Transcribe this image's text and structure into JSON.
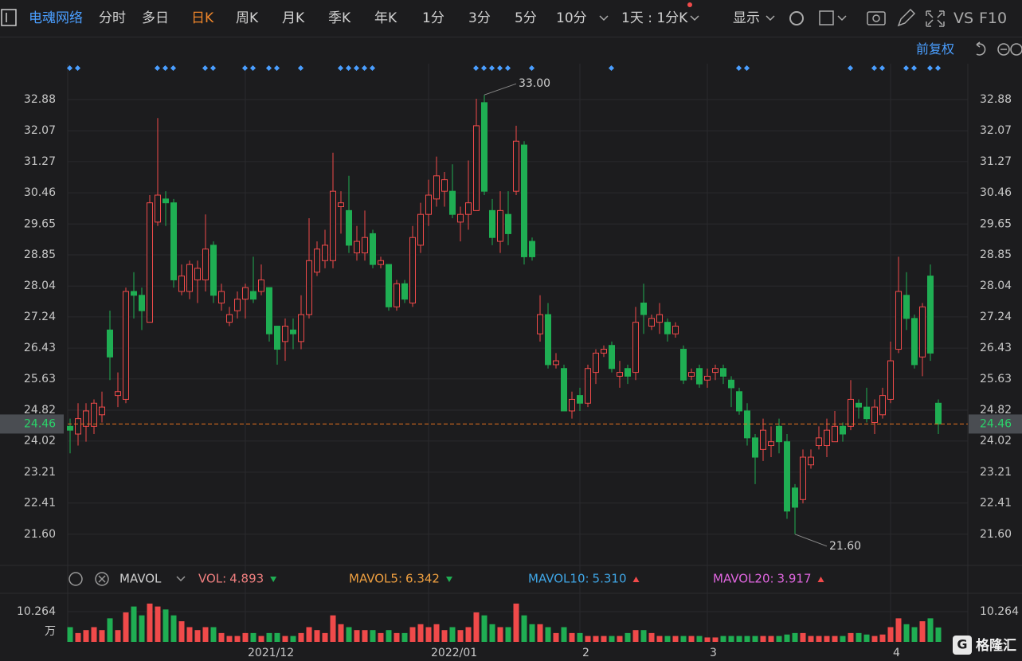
{
  "toolbar": {
    "stock": "电魂网络",
    "periods": [
      "分时",
      "多日",
      "日K",
      "周K",
      "月K",
      "季K",
      "年K",
      "1分",
      "3分",
      "5分",
      "10分"
    ],
    "active": 2,
    "interval": "1天 : 1分K",
    "display": "显示",
    "vs": "VS",
    "f10": "F10",
    "adjust": "前复权"
  },
  "watermark": "格隆汇",
  "chart_data": [
    {
      "type": "candlestick",
      "categories": [
        null,
        null,
        null,
        null,
        null,
        null,
        null,
        null,
        null,
        null,
        null,
        null,
        null,
        null,
        null,
        null,
        null,
        null,
        null,
        null,
        null,
        null,
        "2021/12",
        null,
        null,
        null,
        null,
        null,
        null,
        null,
        null,
        null,
        null,
        null,
        null,
        null,
        null,
        null,
        null,
        null,
        null,
        null,
        null,
        null,
        null,
        "2022/01",
        null,
        null,
        null,
        null,
        null,
        null,
        null,
        null,
        null,
        null,
        null,
        null,
        null,
        null,
        null,
        null,
        null,
        null,
        "2",
        null,
        null,
        null,
        null,
        null,
        null,
        null,
        null,
        null,
        null,
        null,
        null,
        null,
        null,
        null,
        "3",
        null,
        null,
        null,
        null,
        null,
        null,
        null,
        null,
        null,
        null,
        null,
        null,
        null,
        null,
        null,
        null,
        null,
        null,
        null,
        null,
        null,
        null,
        "4",
        null,
        null,
        null,
        null,
        null,
        null
      ],
      "open": [
        24.4,
        24.2,
        24.4,
        24.4,
        24.7,
        26.9,
        25.2,
        25.1,
        27.9,
        27.8,
        27.1,
        29.7,
        30.3,
        30.2,
        27.9,
        27.9,
        28.2,
        28.2,
        29.1,
        27.6,
        27.1,
        27.4,
        27.7,
        27.9,
        27.9,
        28.0,
        27.0,
        26.6,
        26.9,
        26.6,
        27.3,
        28.4,
        28.7,
        28.7,
        30.1,
        30.0,
        28.9,
        28.9,
        29.4,
        28.6,
        28.6,
        27.5,
        28.1,
        27.6,
        29.1,
        29.9,
        30.3,
        30.5,
        30.5,
        29.7,
        29.9,
        30.0,
        32.8,
        30.0,
        29.2,
        29.9,
        30.5,
        31.7,
        29.2,
        26.8,
        27.3,
        26.0,
        25.9,
        24.8,
        25.2,
        25.0,
        25.8,
        26.3,
        26.5,
        25.7,
        25.9,
        25.8,
        27.6,
        27.0,
        27.1,
        27.1,
        26.8,
        26.4,
        25.7,
        25.9,
        25.6,
        25.8,
        25.9,
        25.6,
        25.3,
        24.8,
        24.1,
        23.8,
        23.9,
        24.4,
        24.0,
        22.8,
        22.5,
        23.4,
        23.9,
        23.9,
        24.0,
        24.4,
        24.4,
        25.0,
        24.9,
        24.5,
        24.7,
        25.1,
        26.4,
        27.8,
        27.2,
        26.2,
        28.3,
        25.0
      ],
      "high": [
        24.6,
        25.0,
        25.0,
        25.1,
        25.3,
        27.4,
        25.8,
        28.0,
        28.4,
        28.0,
        30.4,
        32.4,
        30.5,
        30.3,
        28.6,
        28.7,
        28.7,
        29.9,
        29.2,
        28.1,
        27.5,
        27.9,
        28.1,
        28.8,
        28.6,
        28.0,
        27.0,
        27.2,
        27.2,
        27.8,
        29.8,
        29.2,
        29.5,
        31.5,
        30.5,
        30.9,
        29.6,
        30.0,
        29.5,
        28.8,
        28.6,
        28.2,
        28.2,
        29.6,
        30.2,
        30.8,
        31.4,
        31.0,
        31.2,
        30.1,
        31.3,
        32.9,
        33.0,
        30.3,
        30.5,
        30.5,
        32.2,
        31.8,
        29.3,
        27.8,
        27.6,
        26.3,
        26.0,
        25.3,
        25.4,
        26.0,
        26.4,
        26.5,
        26.6,
        26.1,
        26.0,
        27.5,
        28.1,
        27.3,
        27.6,
        27.2,
        27.1,
        26.5,
        25.9,
        26.0,
        25.9,
        26.0,
        26.0,
        25.7,
        25.4,
        25.0,
        24.2,
        24.6,
        24.4,
        24.6,
        24.2,
        22.9,
        23.8,
        23.8,
        24.4,
        24.6,
        24.8,
        24.5,
        25.6,
        25.1,
        25.4,
        25.1,
        25.4,
        26.6,
        28.8,
        28.4,
        27.3,
        27.6,
        28.6,
        25.1
      ],
      "low": [
        23.7,
        23.9,
        24.0,
        24.2,
        24.5,
        25.6,
        24.9,
        25.0,
        27.2,
        26.9,
        27.1,
        29.6,
        29.6,
        28.0,
        27.8,
        27.7,
        27.6,
        27.9,
        27.6,
        27.4,
        27.0,
        27.2,
        27.2,
        27.6,
        27.8,
        26.6,
        26.0,
        26.1,
        26.4,
        26.4,
        27.2,
        28.3,
        28.5,
        28.5,
        29.4,
        28.9,
        28.7,
        28.7,
        28.5,
        28.5,
        27.4,
        27.4,
        27.6,
        27.5,
        28.9,
        29.6,
        30.1,
        30.1,
        29.8,
        29.2,
        29.5,
        30.0,
        30.4,
        29.1,
        28.9,
        29.1,
        30.4,
        28.6,
        28.7,
        26.6,
        25.9,
        25.9,
        24.8,
        24.6,
        24.8,
        24.9,
        25.5,
        26.2,
        25.8,
        25.4,
        25.5,
        25.6,
        26.8,
        26.9,
        26.8,
        26.6,
        26.7,
        25.5,
        25.6,
        25.4,
        25.4,
        25.6,
        25.5,
        24.9,
        24.7,
        23.9,
        22.9,
        23.5,
        23.6,
        23.7,
        22.0,
        21.6,
        22.4,
        23.3,
        23.8,
        23.6,
        24.0,
        24.0,
        24.3,
        24.6,
        24.5,
        24.2,
        24.6,
        25.0,
        26.3,
        26.9,
        25.9,
        25.7,
        26.1,
        24.2
      ],
      "close": [
        24.3,
        24.6,
        24.8,
        25.0,
        24.9,
        26.2,
        25.3,
        27.9,
        27.8,
        27.4,
        30.2,
        30.4,
        30.2,
        28.2,
        28.3,
        28.6,
        28.5,
        29.0,
        27.8,
        27.9,
        27.3,
        27.7,
        28.0,
        27.7,
        28.2,
        26.8,
        26.4,
        27.0,
        26.8,
        27.3,
        28.7,
        29.0,
        29.1,
        30.5,
        30.2,
        29.1,
        29.2,
        29.3,
        28.6,
        28.7,
        27.5,
        28.1,
        27.7,
        29.3,
        29.9,
        30.4,
        30.9,
        30.8,
        29.9,
        29.9,
        30.2,
        32.2,
        30.5,
        29.3,
        30.0,
        29.4,
        31.8,
        28.8,
        28.8,
        27.3,
        26.0,
        26.1,
        24.8,
        25.1,
        25.0,
        25.9,
        26.3,
        26.4,
        25.9,
        25.8,
        25.7,
        27.1,
        27.3,
        27.2,
        27.3,
        26.8,
        27.0,
        25.6,
        25.8,
        25.5,
        25.7,
        25.9,
        25.7,
        25.4,
        24.8,
        24.1,
        23.6,
        24.3,
        24.0,
        24.0,
        22.2,
        22.3,
        23.6,
        23.6,
        24.1,
        24.3,
        24.4,
        24.2,
        25.1,
        24.9,
        24.6,
        24.9,
        25.2,
        26.1,
        27.9,
        27.2,
        26.0,
        27.5,
        26.3,
        24.46
      ],
      "up_color": "#f04a4a",
      "down_color": "#1fae53",
      "ylim": [
        20.79,
        33.81
      ],
      "yticks": [
        {
          "value": 21.6,
          "label": "21.60"
        },
        22.41,
        23.21,
        24.02,
        24.82,
        25.63,
        26.43,
        27.24,
        28.04,
        28.85,
        29.65,
        30.46,
        31.27,
        32.07,
        32.88
      ],
      "grid": true,
      "last_price": 24.46,
      "last_price_color": "#e8731f",
      "annotations": [
        {
          "value": 33.0,
          "label": "33.00",
          "at": "high"
        },
        {
          "value": 21.6,
          "label": "21.60",
          "at": "low"
        }
      ]
    },
    {
      "type": "bar",
      "indicator": "MAVOL",
      "values": [
        5,
        3,
        4,
        5,
        4,
        8,
        4,
        10,
        12,
        9,
        13,
        12,
        11,
        9,
        7,
        5,
        4,
        5,
        5,
        3,
        2,
        2,
        3,
        3,
        2,
        3,
        3,
        2,
        2,
        3,
        5,
        4,
        3,
        9,
        6,
        5,
        4,
        4,
        4,
        3,
        4,
        3,
        3,
        5,
        6,
        5,
        6,
        4,
        5,
        4,
        5,
        10,
        9,
        6,
        5,
        5,
        13,
        9,
        6,
        6,
        5,
        3,
        5,
        3,
        3,
        2,
        2,
        2,
        2,
        2,
        3,
        4,
        4,
        3,
        2,
        2,
        2,
        2,
        2,
        2,
        1.5,
        1.5,
        2,
        2,
        2,
        2,
        2,
        2,
        2,
        2,
        2.5,
        3,
        3,
        2,
        2,
        2,
        2,
        2,
        3,
        3,
        2.5,
        2,
        2.5,
        5,
        8,
        6,
        5,
        7,
        8,
        4.893
      ],
      "ylim": [
        0,
        15.67
      ],
      "yticks": [
        10.264
      ],
      "unit": "万",
      "legend": [
        {
          "name": "VOL:",
          "value": 4.893,
          "color": "#f07f7f",
          "trend": "down"
        },
        {
          "name": "MAVOL5:",
          "value": 6.342,
          "color": "#f0a040",
          "trend": "down"
        },
        {
          "name": "MAVOL10:",
          "value": 5.31,
          "value_label": "5.310",
          "color": "#3fa6e6",
          "trend": "up"
        },
        {
          "name": "MAVOL20:",
          "value": 3.917,
          "color": "#e066e0",
          "trend": "up"
        }
      ]
    }
  ]
}
